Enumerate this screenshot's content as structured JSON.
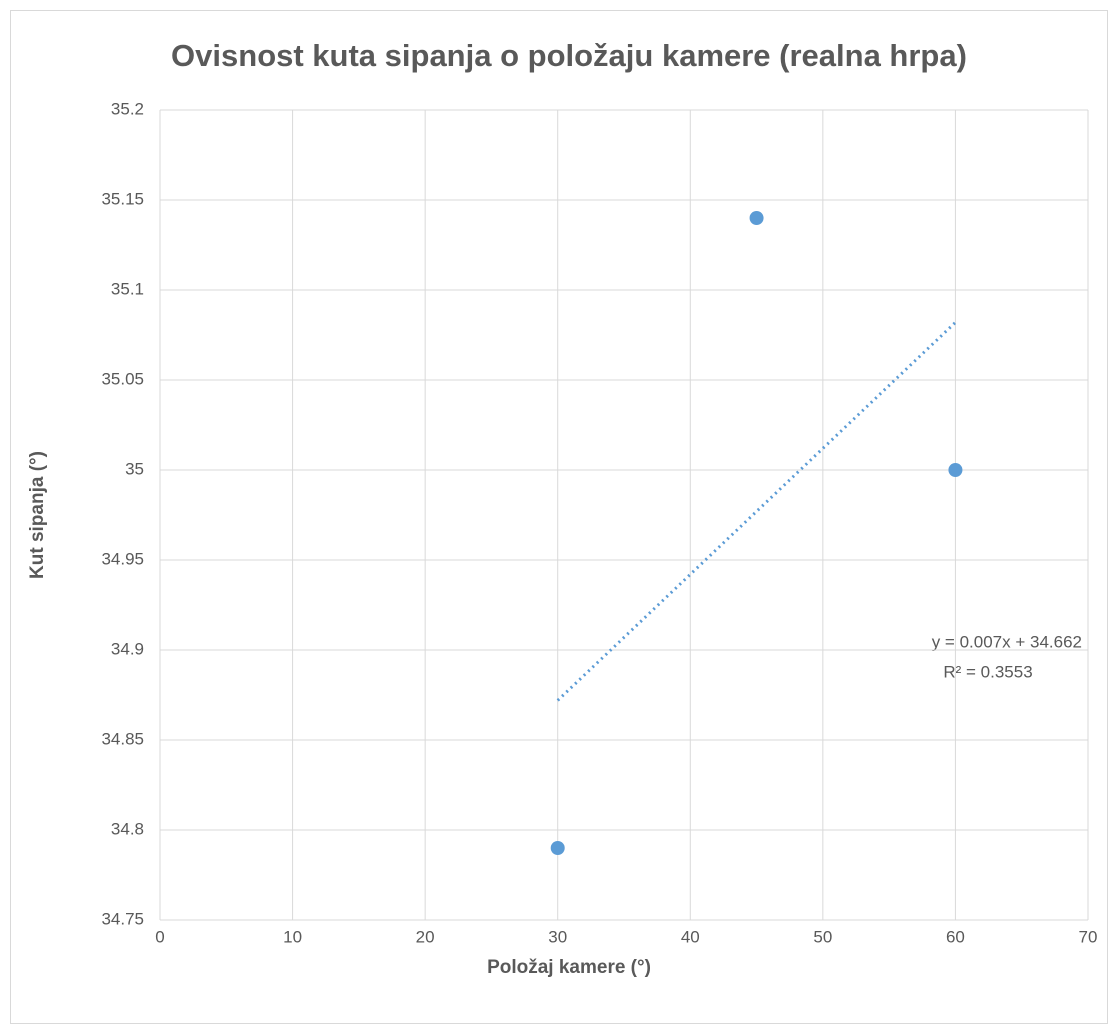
{
  "chart_data": {
    "type": "scatter",
    "title": "Ovisnost kuta sipanja o položaju kamere (realna hrpa)",
    "x_label": "Položaj kamere (°)",
    "y_label": "Kut sipanja (°)",
    "series": [
      {
        "name": "Kut sipanja",
        "color": "#5b9bd5",
        "x": [
          30,
          45,
          60
        ],
        "values": [
          34.79,
          35.14,
          35.0
        ]
      }
    ],
    "trendline": {
      "type": "linear",
      "color": "#5b9bd5",
      "x": [
        30,
        60
      ],
      "values": [
        34.872,
        35.082
      ],
      "equation": "y = 0.007x + 34.662",
      "r_squared": "R² = 0.3553"
    },
    "xlim": [
      0,
      70
    ],
    "xticks": [
      0,
      10,
      20,
      30,
      40,
      50,
      60,
      70
    ],
    "ylim": [
      34.75,
      35.2
    ],
    "yticks": [
      34.75,
      34.8,
      34.85,
      34.9,
      34.95,
      35,
      35.05,
      35.1,
      35.15,
      35.2
    ],
    "grid": true
  }
}
